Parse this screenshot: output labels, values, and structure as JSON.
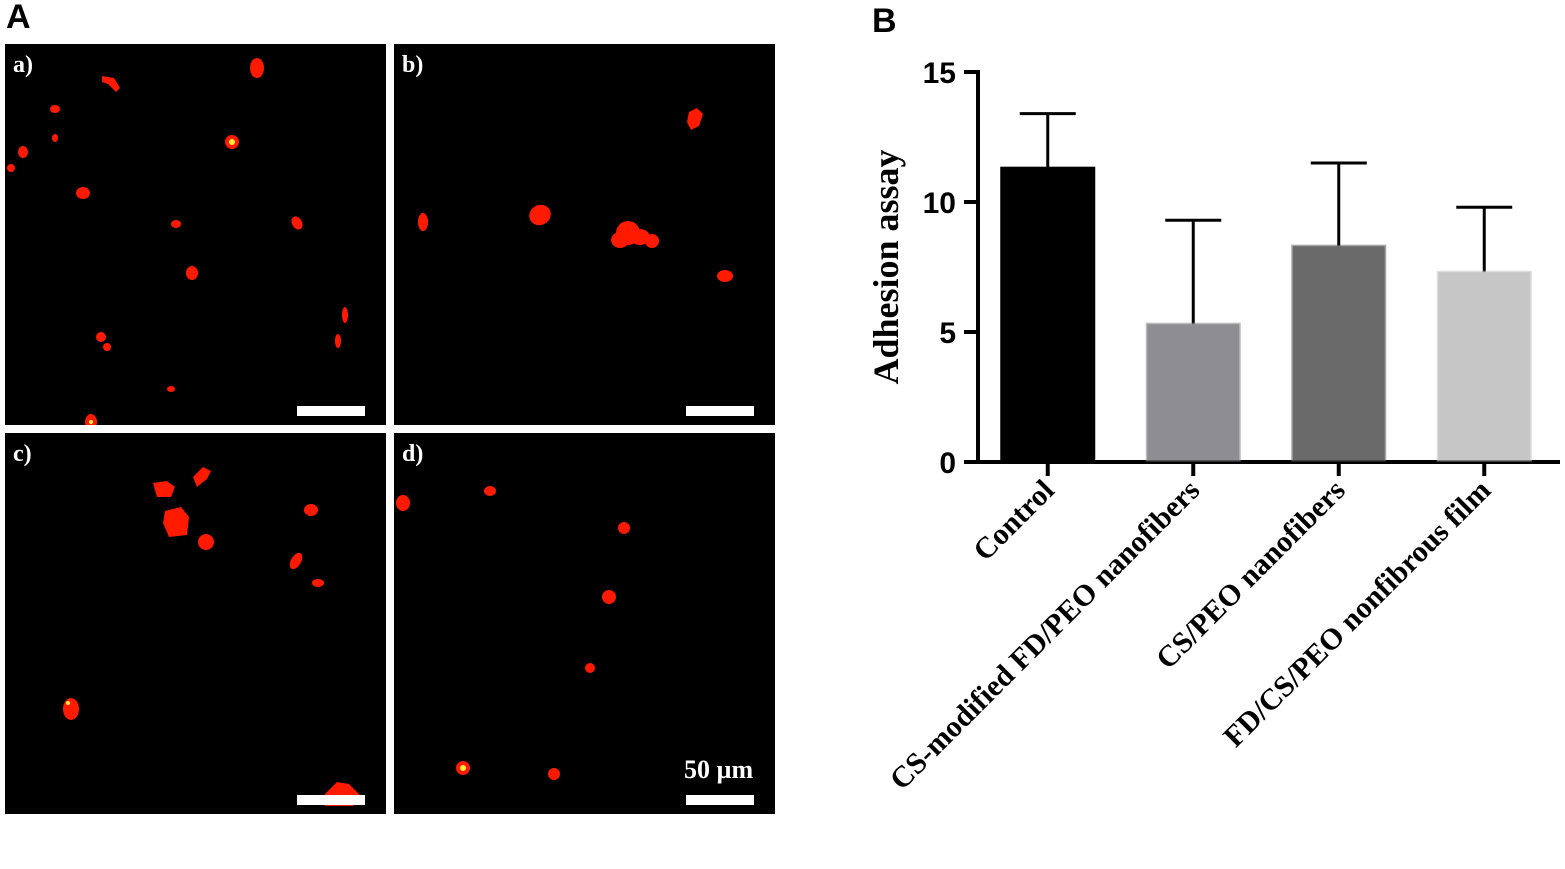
{
  "panel_labels": {
    "a": "A",
    "b": "B"
  },
  "micrographs": [
    {
      "label": "a)",
      "scale_text": ""
    },
    {
      "label": "b)",
      "scale_text": ""
    },
    {
      "label": "c)",
      "scale_text": ""
    },
    {
      "label": "d)",
      "scale_text": "50 µm"
    }
  ],
  "colors": {
    "cell": "#ff1a00",
    "cell_core": "#ffee33",
    "background": "#000000",
    "axis": "#000000"
  },
  "chart_data": {
    "type": "bar",
    "title": "",
    "xlabel": "",
    "ylabel": "Adhesion assay",
    "ylim": [
      0,
      15
    ],
    "yticks": [
      0,
      5,
      10,
      15
    ],
    "categories": [
      "Control",
      "CS-modified FD/PEO nanofibers",
      "CS/PEO nanofibers",
      "FD/CS/PEO nonfibrous film"
    ],
    "values": [
      11.3,
      5.3,
      8.3,
      7.3
    ],
    "errors": [
      2.1,
      4.0,
      3.2,
      2.5
    ],
    "bar_colors": [
      "#000000",
      "#8e8e92",
      "#6a6a6a",
      "#c6c6c6"
    ],
    "grid": false,
    "legend": "none"
  }
}
